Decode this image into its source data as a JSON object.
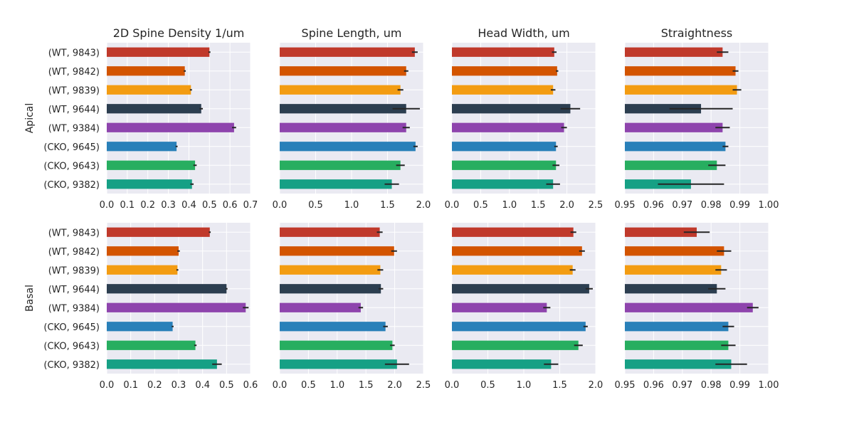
{
  "chart_data": {
    "type": "bar",
    "orientation": "horizontal",
    "layout": "grid 2 rows x 4 columns",
    "grid": true,
    "categories": [
      "(WT, 9843)",
      "(WT, 9842)",
      "(WT, 9839)",
      "(WT, 9644)",
      "(WT, 9384)",
      "(CKO, 9645)",
      "(CKO, 9643)",
      "(CKO, 9382)"
    ],
    "colors": [
      "#c0392b",
      "#d35400",
      "#f39c12",
      "#2c3e50",
      "#8e44ad",
      "#2980b9",
      "#27ae60",
      "#16a085"
    ],
    "row_labels": [
      "Apical",
      "Basal"
    ],
    "column_titles": [
      "2D Spine Density 1/um",
      "Spine Length, um",
      "Head Width, um",
      "Straightness"
    ],
    "panels": [
      {
        "row": 0,
        "col": 0,
        "xlim": [
          0,
          0.7
        ],
        "xticks": [
          "0.0",
          "0.1",
          "0.2",
          "0.3",
          "0.4",
          "0.5",
          "0.6",
          "0.7"
        ],
        "values": [
          0.5,
          0.38,
          0.41,
          0.46,
          0.62,
          0.34,
          0.43,
          0.415
        ],
        "errors": [
          0.005,
          0.005,
          0.005,
          0.008,
          0.01,
          0.005,
          0.008,
          0.008
        ]
      },
      {
        "row": 0,
        "col": 1,
        "xlim": [
          0,
          2.0
        ],
        "xticks": [
          "0.0",
          "0.5",
          "1.0",
          "1.5",
          "2.0"
        ],
        "values": [
          1.88,
          1.76,
          1.68,
          1.76,
          1.76,
          1.89,
          1.68,
          1.56
        ],
        "errors": [
          0.04,
          0.03,
          0.04,
          0.19,
          0.05,
          0.03,
          0.06,
          0.1
        ]
      },
      {
        "row": 0,
        "col": 2,
        "xlim": [
          0,
          2.5
        ],
        "xticks": [
          "0.0",
          "0.5",
          "1.0",
          "1.5",
          "2.0",
          "2.5"
        ],
        "values": [
          1.78,
          1.83,
          1.76,
          2.06,
          1.95,
          1.81,
          1.81,
          1.76
        ],
        "errors": [
          0.04,
          0.02,
          0.04,
          0.17,
          0.05,
          0.03,
          0.06,
          0.12
        ]
      },
      {
        "row": 0,
        "col": 3,
        "xlim": [
          0.95,
          1.0
        ],
        "xticks": [
          "0.95",
          "0.96",
          "0.97",
          "0.98",
          "0.99",
          "1.00"
        ],
        "values": [
          0.984,
          0.9885,
          0.989,
          0.9765,
          0.984,
          0.985,
          0.982,
          0.973
        ],
        "errors": [
          0.002,
          0.001,
          0.0015,
          0.011,
          0.0025,
          0.001,
          0.003,
          0.0115
        ]
      }
    ],
    "panels_basal": [
      {
        "row": 1,
        "col": 0,
        "xlim": [
          0,
          0.6
        ],
        "xticks": [
          "0.0",
          "0.1",
          "0.2",
          "0.3",
          "0.4",
          "0.5",
          "0.6"
        ],
        "values": [
          0.43,
          0.3,
          0.295,
          0.5,
          0.58,
          0.275,
          0.37,
          0.46
        ],
        "errors": [
          0.004,
          0.005,
          0.004,
          0.004,
          0.012,
          0.004,
          0.005,
          0.02
        ]
      },
      {
        "row": 1,
        "col": 1,
        "xlim": [
          0,
          2.5
        ],
        "xticks": [
          "0.0",
          "0.5",
          "1.0",
          "1.5",
          "2.0",
          "2.5"
        ],
        "values": [
          1.74,
          1.99,
          1.75,
          1.76,
          1.41,
          1.84,
          1.96,
          2.04
        ],
        "errors": [
          0.05,
          0.05,
          0.05,
          0.04,
          0.04,
          0.04,
          0.04,
          0.21
        ]
      },
      {
        "row": 1,
        "col": 2,
        "xlim": [
          0,
          2.0
        ],
        "xticks": [
          "0.0",
          "0.5",
          "1.0",
          "1.5",
          "2.0"
        ],
        "values": [
          1.69,
          1.81,
          1.68,
          1.91,
          1.32,
          1.86,
          1.76,
          1.38
        ],
        "errors": [
          0.04,
          0.04,
          0.04,
          0.05,
          0.05,
          0.03,
          0.06,
          0.1
        ]
      },
      {
        "row": 1,
        "col": 3,
        "xlim": [
          0.95,
          1.0
        ],
        "xticks": [
          "0.95",
          "0.96",
          "0.97",
          "0.98",
          "0.99",
          "1.00"
        ],
        "values": [
          0.975,
          0.9845,
          0.9835,
          0.982,
          0.9945,
          0.986,
          0.986,
          0.987
        ],
        "errors": [
          0.0045,
          0.0025,
          0.002,
          0.003,
          0.002,
          0.002,
          0.0025,
          0.0055
        ]
      }
    ]
  }
}
